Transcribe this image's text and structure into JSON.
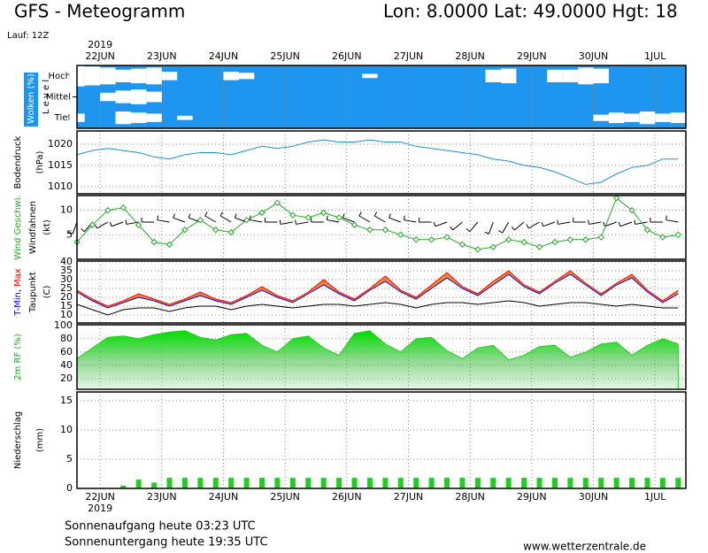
{
  "header": {
    "title": "GFS - Meteogramm",
    "location": "Lon: 8.0000 Lat: 49.0000 Hgt: 18",
    "run": "Lauf: 12Z"
  },
  "footer": {
    "sunrise": "Sonnenaufgang heute 03:23 UTC",
    "sunset": "Sonnenuntergang heute 19:35 UTC",
    "source": "www.wetterzentrale.de"
  },
  "time_axis": {
    "year": "2019",
    "xlim": [
      -9,
      228
    ],
    "x": [
      -9,
      -3,
      3,
      9,
      15,
      21,
      27,
      33,
      39,
      45,
      51,
      57,
      63,
      69,
      75,
      81,
      87,
      93,
      99,
      105,
      111,
      117,
      123,
      129,
      135,
      141,
      147,
      153,
      159,
      165,
      171,
      177,
      183,
      189,
      195,
      201,
      207,
      213,
      219,
      225
    ],
    "xticks": [
      {
        "value": 0,
        "label": "22JUN"
      },
      {
        "value": 24,
        "label": "23JUN"
      },
      {
        "value": 48,
        "label": "24JUN"
      },
      {
        "value": 72,
        "label": "25JUN"
      },
      {
        "value": 96,
        "label": "26JUN"
      },
      {
        "value": 120,
        "label": "27JUN"
      },
      {
        "value": 144,
        "label": "28JUN"
      },
      {
        "value": 168,
        "label": "29JUN"
      },
      {
        "value": 192,
        "label": "30JUN"
      },
      {
        "value": 216,
        "label": "1JUL"
      }
    ]
  },
  "chart_data": [
    {
      "type": "cloud",
      "label": "Wolken (%)",
      "label2": "L e v e l",
      "background": "#1e96f0",
      "color": "#ffffff",
      "series": [
        {
          "name": "Hoch",
          "values": [
            100,
            90,
            80,
            60,
            70,
            80,
            40,
            0,
            0,
            0,
            40,
            30,
            0,
            0,
            0,
            0,
            0,
            0,
            0,
            20,
            0,
            0,
            0,
            0,
            0,
            0,
            0,
            60,
            70,
            0,
            0,
            60,
            60,
            80,
            70,
            0,
            0,
            0,
            0,
            0
          ]
        },
        {
          "name": "Mittel",
          "values": [
            0,
            0,
            40,
            60,
            70,
            50,
            0,
            0,
            0,
            0,
            0,
            0,
            0,
            0,
            0,
            0,
            0,
            0,
            0,
            0,
            0,
            0,
            0,
            0,
            0,
            0,
            0,
            0,
            0,
            0,
            0,
            0,
            0,
            0,
            0,
            0,
            0,
            0,
            0,
            0
          ]
        },
        {
          "name": "Tief",
          "values": [
            40,
            0,
            0,
            60,
            50,
            40,
            0,
            20,
            0,
            0,
            0,
            0,
            0,
            0,
            0,
            0,
            0,
            0,
            0,
            0,
            0,
            0,
            0,
            0,
            0,
            0,
            0,
            0,
            0,
            0,
            0,
            0,
            0,
            0,
            30,
            50,
            40,
            60,
            40,
            50
          ]
        }
      ]
    },
    {
      "type": "line",
      "label": "Bodendruck",
      "unit": "(hPa)",
      "ylim": [
        1008.3,
        1023.1
      ],
      "yticks": [
        1010,
        1015,
        1020
      ],
      "color": "#1e90d0",
      "values": [
        1017.5,
        1018.5,
        1019,
        1018.5,
        1018,
        1017,
        1016.5,
        1017.5,
        1018,
        1018,
        1017.5,
        1018.5,
        1019.5,
        1019,
        1019.5,
        1020.5,
        1021,
        1020.5,
        1020.5,
        1021,
        1020.5,
        1020.5,
        1019.5,
        1019,
        1018.5,
        1018,
        1017.5,
        1016.5,
        1016,
        1015,
        1014.5,
        1013.5,
        1012,
        1010.5,
        1011,
        1013,
        1014.5,
        1015,
        1016.5,
        1016.5
      ]
    },
    {
      "type": "wind",
      "label": "Wind Geschwi.",
      "label_color": "#22aa22",
      "label2": "Windfahnen",
      "unit": "(kt)",
      "ylim": [
        0,
        13
      ],
      "yticks": [
        5,
        10
      ],
      "color": "#22aa22",
      "values": [
        3.5,
        7,
        10,
        10.5,
        7,
        3.5,
        3,
        6,
        8,
        6,
        5.5,
        8,
        9.5,
        11.5,
        9,
        8.5,
        9.5,
        8.5,
        7,
        6,
        6,
        5,
        4,
        4,
        4.5,
        3,
        2,
        2.5,
        4,
        3.5,
        2.5,
        3.5,
        4,
        4,
        4.5,
        12.5,
        10,
        6,
        4.5,
        5
      ],
      "directions": [
        200,
        220,
        240,
        250,
        260,
        270,
        280,
        290,
        290,
        300,
        300,
        290,
        280,
        270,
        260,
        260,
        270,
        280,
        290,
        300,
        300,
        290,
        280,
        270,
        250,
        230,
        220,
        200,
        210,
        230,
        240,
        250,
        260,
        270,
        260,
        250,
        250,
        260,
        270,
        280
      ]
    },
    {
      "type": "temperature",
      "unit": "(C)",
      "ylim": [
        5.5,
        40.5
      ],
      "yticks": [
        10,
        15,
        20,
        25,
        30,
        35,
        40
      ],
      "fill": "#f08a30",
      "series": [
        {
          "name": "T-Min,",
          "color": "#0000ff",
          "values": [
            23,
            18,
            14,
            17,
            20,
            18,
            15,
            18,
            21,
            18,
            16,
            20,
            24,
            20,
            17,
            22,
            27,
            22,
            18,
            24,
            29,
            23,
            19,
            25,
            31,
            25,
            21,
            27,
            33,
            26,
            22,
            28,
            33,
            27,
            21,
            27,
            31,
            23,
            17,
            22
          ]
        },
        {
          "name": "Max",
          "color": "#ff0000",
          "values": [
            24,
            19,
            15,
            18,
            22,
            19,
            16,
            19,
            23,
            19,
            17,
            21,
            26,
            21,
            18,
            23,
            30,
            23,
            19,
            25,
            32,
            24,
            20,
            27,
            34,
            26,
            22,
            29,
            35,
            27,
            23,
            29,
            35,
            28,
            22,
            28,
            33,
            24,
            18,
            24
          ]
        },
        {
          "name": "Taupunkt",
          "color": "#000000",
          "values": [
            16,
            13,
            10,
            13,
            14,
            14,
            12,
            14,
            15,
            15,
            13,
            15,
            16,
            15,
            14,
            15,
            16,
            16,
            15,
            16,
            17,
            16,
            14,
            16,
            17,
            17,
            16,
            17,
            18,
            17,
            15,
            16,
            17,
            17,
            16,
            15,
            16,
            15,
            14,
            14
          ]
        }
      ]
    },
    {
      "type": "area",
      "label": "2m RF (%)",
      "label_color": "#22aa22",
      "ylim": [
        4,
        101
      ],
      "yticks": [
        20,
        40,
        60,
        80,
        100
      ],
      "color": "#22cc22",
      "values": [
        50,
        66,
        82,
        84,
        80,
        86,
        90,
        92,
        82,
        78,
        86,
        88,
        70,
        60,
        80,
        84,
        66,
        55,
        88,
        92,
        72,
        60,
        80,
        82,
        62,
        50,
        66,
        70,
        48,
        55,
        68,
        70,
        52,
        60,
        72,
        75,
        55,
        70,
        80,
        72
      ]
    },
    {
      "type": "bar",
      "label": "Niederschlag",
      "unit": "(mm)",
      "ylim": [
        0,
        16.5
      ],
      "yticks": [
        0,
        5,
        10,
        15
      ],
      "color": "#22cc22",
      "values": [
        0,
        0,
        0,
        0.5,
        1.5,
        1,
        1.8,
        1.8,
        1.8,
        1.8,
        1.8,
        1.8,
        1.8,
        1.8,
        1.8,
        1.8,
        1.8,
        1.8,
        1.8,
        1.8,
        1.8,
        1.8,
        1.8,
        1.8,
        1.8,
        1.8,
        1.8,
        1.8,
        1.8,
        1.8,
        1.8,
        1.8,
        1.8,
        1.8,
        1.8,
        1.8,
        1.8,
        1.8,
        1.8,
        1.8
      ]
    }
  ]
}
